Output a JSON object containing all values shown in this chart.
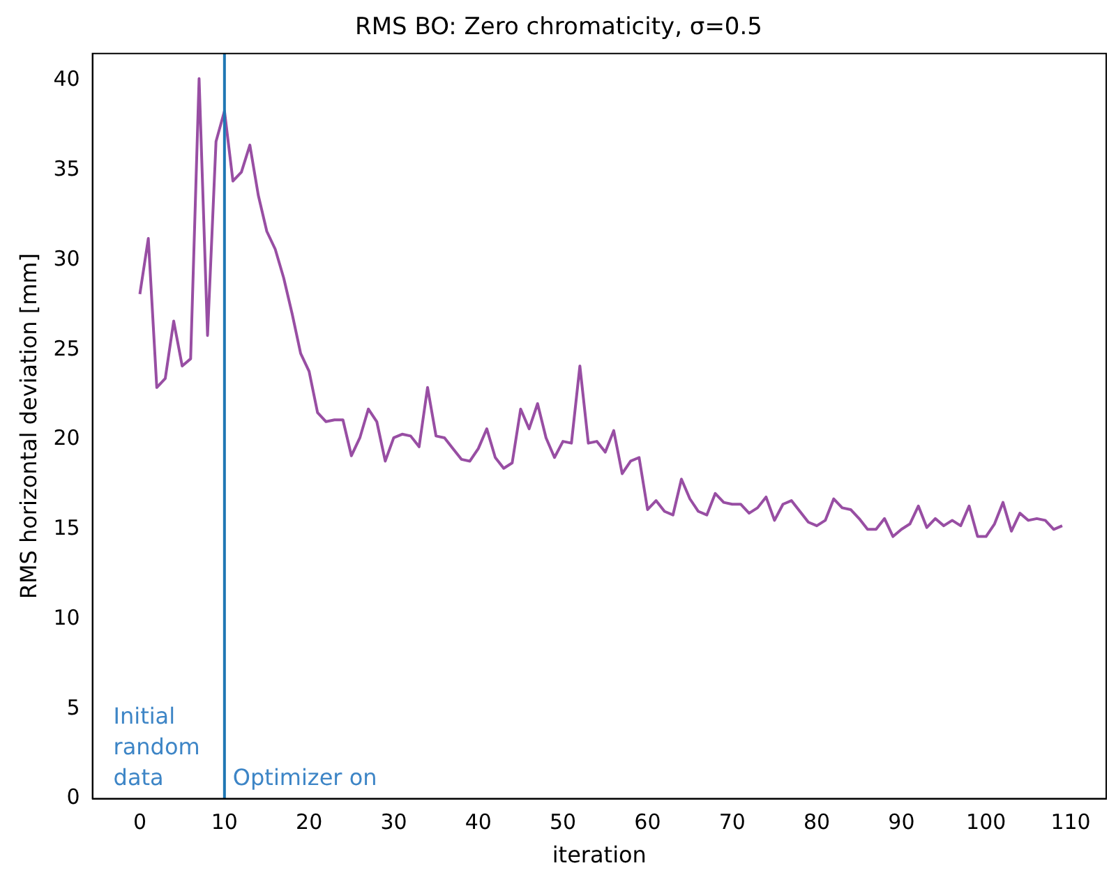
{
  "chart_data": {
    "type": "line",
    "title": "RMS BO: Zero chromaticity, σ=0.5",
    "xlabel": "iteration",
    "ylabel": "RMS horizontal deviation [mm]",
    "x": [
      0,
      1,
      2,
      3,
      4,
      5,
      6,
      7,
      8,
      9,
      10,
      11,
      12,
      13,
      14,
      15,
      16,
      17,
      18,
      19,
      20,
      21,
      22,
      23,
      24,
      25,
      26,
      27,
      28,
      29,
      30,
      31,
      32,
      33,
      34,
      35,
      36,
      37,
      38,
      39,
      40,
      41,
      42,
      43,
      44,
      45,
      46,
      47,
      48,
      49,
      50,
      51,
      52,
      53,
      54,
      55,
      56,
      57,
      58,
      59,
      60,
      61,
      62,
      63,
      64,
      65,
      66,
      67,
      68,
      69,
      70,
      71,
      72,
      73,
      74,
      75,
      76,
      77,
      78,
      79,
      80,
      81,
      82,
      83,
      84,
      85,
      86,
      87,
      88,
      89,
      90,
      91,
      92,
      93,
      94,
      95,
      96,
      97,
      98,
      99,
      100,
      101,
      102,
      103,
      104,
      105,
      106,
      107,
      108,
      109
    ],
    "series": [
      {
        "color": "#984ea3",
        "values": [
          28.1,
          31.2,
          22.9,
          23.4,
          26.6,
          24.1,
          24.5,
          40.1,
          25.8,
          36.6,
          38.3,
          34.4,
          34.9,
          36.4,
          33.6,
          31.6,
          30.6,
          29.0,
          27.0,
          24.8,
          23.8,
          21.5,
          21.0,
          21.1,
          21.1,
          19.1,
          20.1,
          21.7,
          21.0,
          18.8,
          20.1,
          20.3,
          20.2,
          19.6,
          22.9,
          20.2,
          20.1,
          19.5,
          18.9,
          18.8,
          19.5,
          20.6,
          19.0,
          18.4,
          18.7,
          21.7,
          20.6,
          22.0,
          20.1,
          19.0,
          19.9,
          19.8,
          24.1,
          19.8,
          19.9,
          19.3,
          20.5,
          18.1,
          18.8,
          19.0,
          16.1,
          16.6,
          16.0,
          15.8,
          17.8,
          16.7,
          16.0,
          15.8,
          17.0,
          16.5,
          16.4,
          16.4,
          15.9,
          16.2,
          16.8,
          15.5,
          16.4,
          16.6,
          16.0,
          15.4,
          15.2,
          15.5,
          16.7,
          16.2,
          16.1,
          15.6,
          15.0,
          15.0,
          15.6,
          14.6,
          15.0,
          15.3,
          16.3,
          15.1,
          15.6,
          15.2,
          15.5,
          15.2,
          16.3,
          14.6,
          14.6,
          15.3,
          16.5,
          14.9,
          15.9,
          15.5,
          15.6,
          15.5,
          15.0,
          15.2
        ]
      }
    ],
    "xlim": [
      -5.6,
      114.2
    ],
    "xticks": [
      0,
      10,
      20,
      30,
      40,
      50,
      60,
      70,
      80,
      90,
      100,
      110
    ],
    "ylim": [
      0,
      41.5
    ],
    "yticks": [
      0,
      5,
      10,
      15,
      20,
      25,
      30,
      35,
      40
    ],
    "ref_lines": [
      {
        "axis": "x",
        "value": 10,
        "color": "#1f77b4"
      }
    ],
    "annotations": [
      "Initial\nrandom\ndata",
      "Optimizer on"
    ],
    "grid": false,
    "legend": false,
    "marker": "none",
    "line_style": "solid"
  }
}
